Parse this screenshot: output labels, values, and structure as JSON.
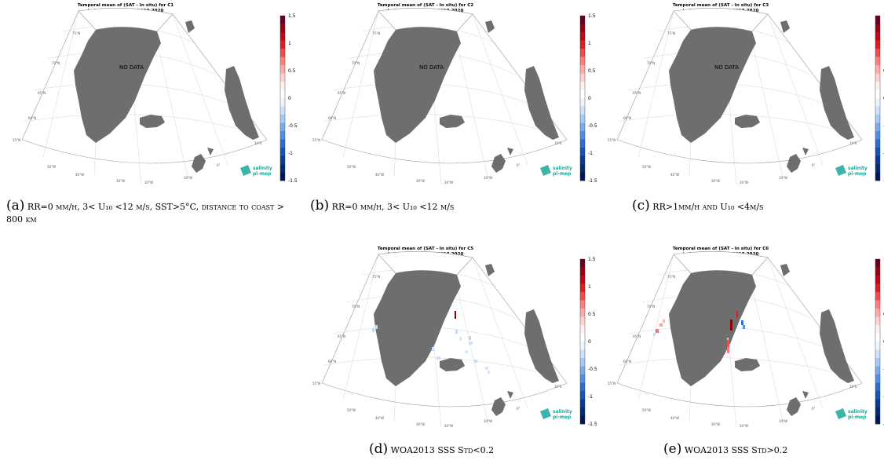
{
  "panels": [
    {
      "id": "a",
      "title1": "Temporal mean of (SAT - In situ) for C1",
      "title2": "in 1°x1° boxes over 2018-2020",
      "nodata": "NO DATA",
      "caption_label": "(a)",
      "caption_text": "RR=0 mm/h, 3< U₁₀ <12 m/s, SST>5°C, distance to coast > 800 km"
    },
    {
      "id": "b",
      "title1": "Temporal mean of (SAT - In situ) for C2",
      "title2": "in 1°x1° boxes over 2018-2020",
      "nodata": "NO DATA",
      "caption_label": "(b)",
      "caption_text": "RR=0 mm/h, 3< U₁₀ <12 m/s"
    },
    {
      "id": "c",
      "title1": "Temporal mean of (SAT - In situ) for C3",
      "title2": "in 1°x1° boxes over 2018-2020",
      "nodata": "NO DATA",
      "caption_label": "(c)",
      "caption_text": "RR>1mm/h and U₁₀ <4m/s"
    },
    {
      "id": "d",
      "title1": "Temporal mean of (SAT - In situ) for C5",
      "title2": "in 1°x1° boxes over 2018-2020",
      "nodata": "",
      "caption_label": "(d)",
      "caption_text": "WOA2013 SSS Std<0.2"
    },
    {
      "id": "e",
      "title1": "Temporal mean of (SAT - In situ) for C6",
      "title2": "in 1°x1° boxes over 2018-2020",
      "nodata": "",
      "caption_label": "(e)",
      "caption_text": "WOA2013 SSS Std>0.2"
    }
  ],
  "colorbar": {
    "ticks": [
      "1.5",
      "1",
      "0.5",
      "0",
      "-0.5",
      "-1",
      "-1.5"
    ],
    "min": -1.5,
    "max": 1.5
  },
  "grid_labels": {
    "lat": [
      "75°N",
      "70°N",
      "65°N",
      "60°N",
      "55°N"
    ],
    "lon": [
      "50°W",
      "40°W",
      "30°W",
      "20°W",
      "10°W",
      "0°",
      "10°E"
    ]
  },
  "logo": {
    "line1": "salinity",
    "line2": "pi-mep"
  },
  "colors": {
    "land": "#6e6e6e",
    "polar_cap": "#ffffff",
    "grid": "#cccccc",
    "logo": "#1aa79a"
  }
}
